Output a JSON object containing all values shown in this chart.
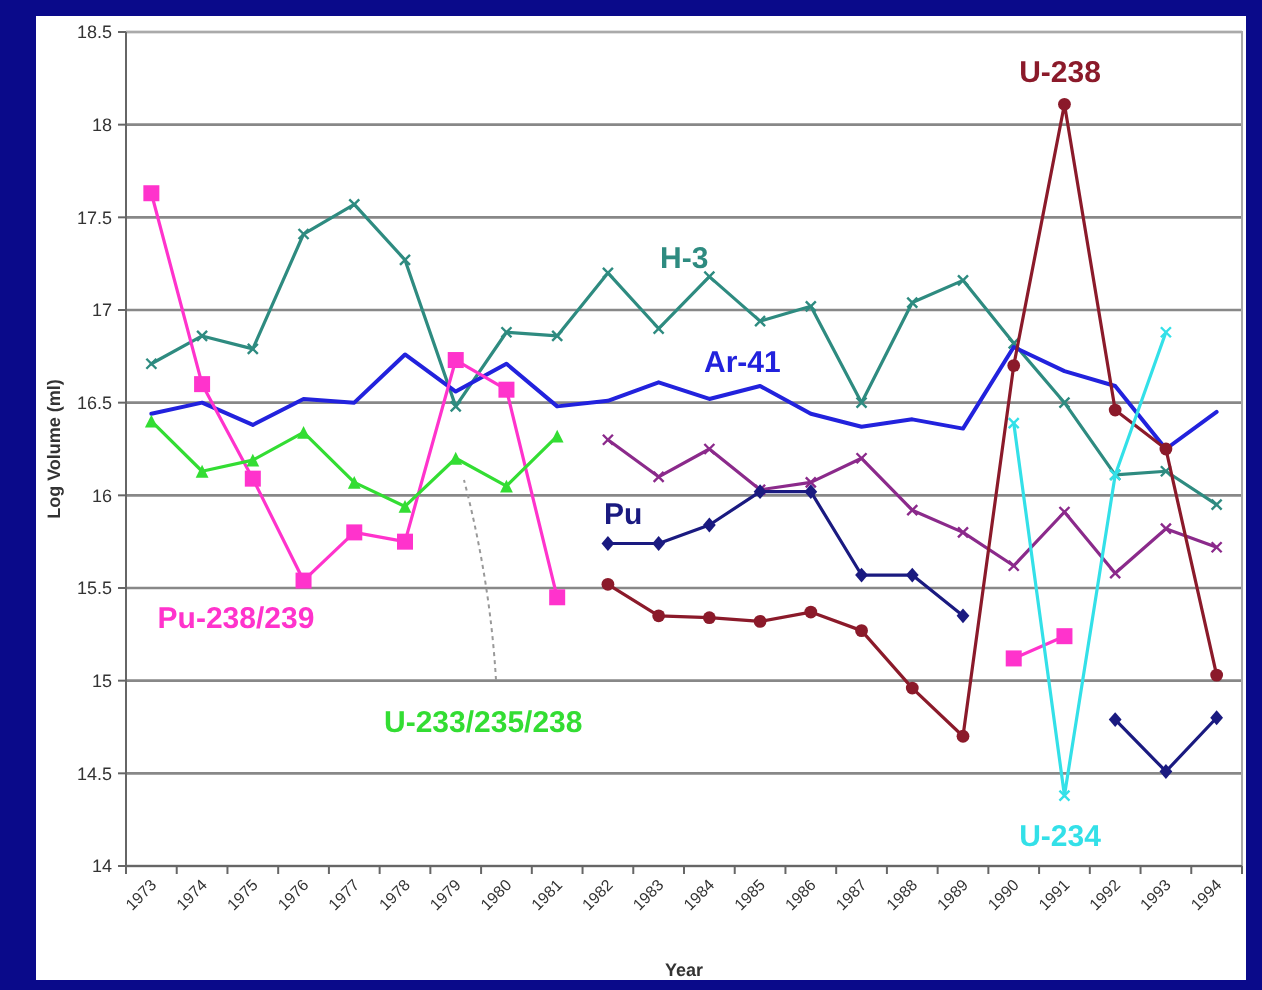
{
  "chart_data": {
    "type": "line",
    "xlabel": "Year",
    "ylabel": "Log Volume (ml)",
    "categories": [
      "1973",
      "1974",
      "1975",
      "1976",
      "1977",
      "1978",
      "1979",
      "1980",
      "1981",
      "1982",
      "1983",
      "1984",
      "1985",
      "1986",
      "1987",
      "1988",
      "1989",
      "1990",
      "1991",
      "1992",
      "1993",
      "1994"
    ],
    "ylim": [
      14,
      18.5
    ],
    "yticks": [
      14,
      14.5,
      15,
      15.5,
      16,
      16.5,
      17,
      17.5,
      18,
      18.5
    ],
    "grid": "y",
    "series": [
      {
        "name": "H-3",
        "color": "#2e8b80",
        "marker": "cross",
        "values": [
          16.71,
          16.86,
          16.79,
          17.41,
          17.57,
          17.27,
          16.48,
          16.88,
          16.86,
          17.2,
          16.9,
          17.18,
          16.94,
          17.02,
          16.5,
          17.04,
          17.16,
          16.82,
          16.5,
          16.11,
          16.13,
          15.95
        ]
      },
      {
        "name": "Ar-41",
        "color": "#2222dd",
        "marker": "none",
        "values": [
          16.44,
          16.5,
          16.38,
          16.52,
          16.5,
          16.76,
          16.56,
          16.71,
          16.48,
          16.51,
          16.61,
          16.52,
          16.59,
          16.44,
          16.37,
          16.41,
          16.36,
          16.8,
          16.67,
          16.59,
          16.25,
          16.45
        ]
      },
      {
        "color": "#8b2a8b",
        "marker": "cross",
        "values": [
          null,
          null,
          null,
          null,
          null,
          null,
          null,
          null,
          null,
          16.3,
          16.1,
          16.25,
          16.03,
          16.07,
          16.2,
          15.92,
          15.8,
          15.62,
          15.91,
          15.58,
          15.82,
          15.72
        ]
      },
      {
        "name": "Pu",
        "color": "#1a1a80",
        "marker": "diamond",
        "values": [
          null,
          null,
          null,
          null,
          null,
          null,
          null,
          null,
          null,
          15.74,
          15.74,
          15.84,
          16.02,
          16.02,
          15.57,
          15.57,
          15.35,
          null,
          null,
          14.79,
          14.51,
          14.8
        ]
      },
      {
        "name": "U-238",
        "color": "#8b1a2a",
        "marker": "circle",
        "values": [
          null,
          null,
          null,
          null,
          null,
          null,
          null,
          null,
          null,
          15.52,
          15.35,
          15.34,
          15.32,
          15.37,
          15.27,
          14.96,
          14.7,
          16.7,
          18.11,
          16.46,
          16.25,
          15.03
        ]
      },
      {
        "name": "Pu-238/239",
        "color": "#ff33cc",
        "marker": "square",
        "values": [
          17.63,
          16.6,
          16.09,
          15.54,
          15.8,
          15.75,
          16.73,
          16.57,
          15.45,
          null,
          null,
          null,
          null,
          null,
          null,
          null,
          null,
          15.12,
          15.24,
          null,
          null,
          null
        ]
      },
      {
        "name": "U-233/235/238",
        "color": "#33dd33",
        "marker": "triangle",
        "values": [
          16.4,
          16.13,
          16.19,
          16.34,
          16.07,
          15.94,
          16.2,
          16.05,
          16.32,
          null,
          null,
          null,
          null,
          null,
          null,
          null,
          null,
          null,
          null,
          null,
          null,
          null
        ]
      },
      {
        "name": "U-234",
        "color": "#33e0e8",
        "marker": "cross",
        "values": [
          null,
          null,
          null,
          null,
          null,
          null,
          null,
          null,
          null,
          null,
          null,
          null,
          null,
          null,
          null,
          null,
          null,
          16.39,
          14.38,
          16.11,
          16.88,
          null
        ]
      }
    ]
  }
}
